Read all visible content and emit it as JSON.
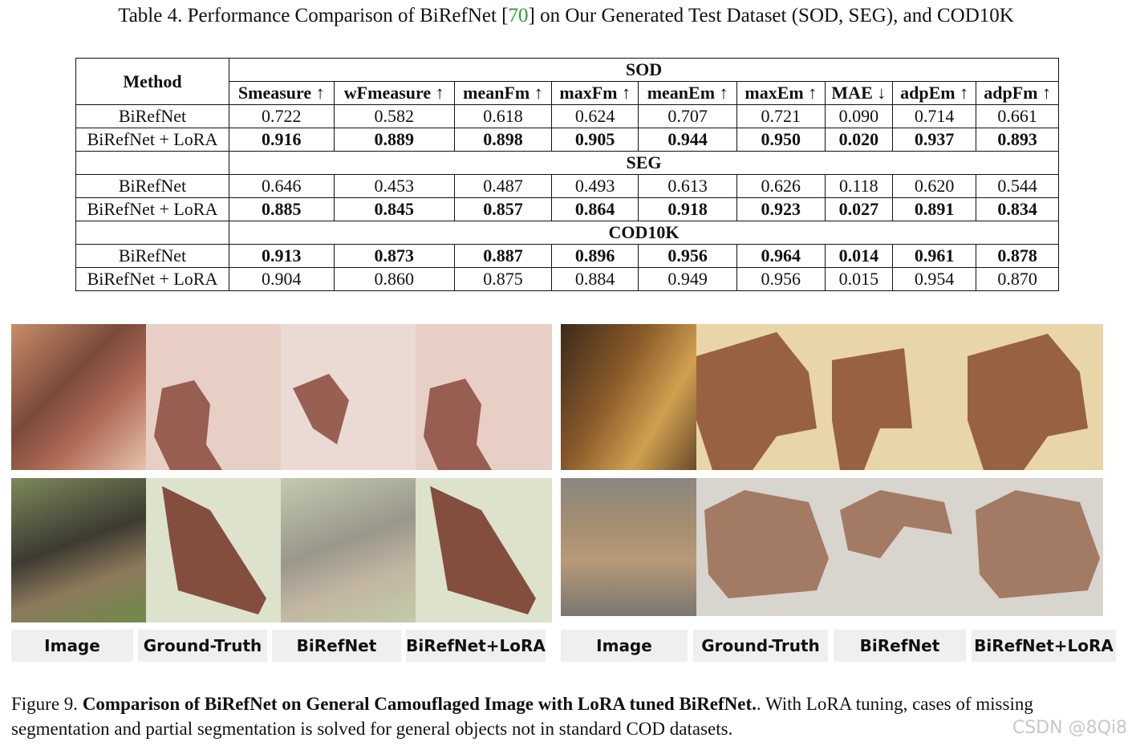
{
  "table_caption": {
    "prefix": "Table 4. Performance Comparison of BiRefNet [",
    "ref": "70",
    "suffix": "] on Our Generated Test Dataset (SOD, SEG), and COD10K"
  },
  "table": {
    "method_header": "Method",
    "columns": [
      "Smeasure ↑",
      "wFmeasure ↑",
      "meanFm ↑",
      "maxFm ↑",
      "meanEm ↑",
      "maxEm ↑",
      "MAE ↓",
      "adpEm ↑",
      "adpFm ↑"
    ],
    "sections": [
      {
        "name": "SOD",
        "rows": [
          {
            "method": "BiRefNet",
            "values": [
              "0.722",
              "0.582",
              "0.618",
              "0.624",
              "0.707",
              "0.721",
              "0.090",
              "0.714",
              "0.661"
            ],
            "bold": false
          },
          {
            "method": "BiRefNet + LoRA",
            "values": [
              "0.916",
              "0.889",
              "0.898",
              "0.905",
              "0.944",
              "0.950",
              "0.020",
              "0.937",
              "0.893"
            ],
            "bold": true
          }
        ]
      },
      {
        "name": "SEG",
        "rows": [
          {
            "method": "BiRefNet",
            "values": [
              "0.646",
              "0.453",
              "0.487",
              "0.493",
              "0.613",
              "0.626",
              "0.118",
              "0.620",
              "0.544"
            ],
            "bold": false
          },
          {
            "method": "BiRefNet + LoRA",
            "values": [
              "0.885",
              "0.845",
              "0.857",
              "0.864",
              "0.918",
              "0.923",
              "0.027",
              "0.891",
              "0.834"
            ],
            "bold": true
          }
        ]
      },
      {
        "name": "COD10K",
        "rows": [
          {
            "method": "BiRefNet",
            "values": [
              "0.913",
              "0.873",
              "0.887",
              "0.896",
              "0.956",
              "0.964",
              "0.014",
              "0.961",
              "0.878"
            ],
            "bold": true
          },
          {
            "method": "BiRefNet + LoRA",
            "values": [
              "0.904",
              "0.860",
              "0.875",
              "0.884",
              "0.949",
              "0.956",
              "0.015",
              "0.954",
              "0.870"
            ],
            "bold": false
          }
        ]
      }
    ]
  },
  "figure": {
    "labels_left": [
      "Image",
      "Ground-Truth",
      "BiRefNet",
      "BiRefNet+LoRA"
    ],
    "labels_right": [
      "Image",
      "Ground-Truth",
      "BiRefNet",
      "BiRefNet+LoRA"
    ]
  },
  "figure_caption": {
    "prefix": "Figure 9. ",
    "bold": "Comparison of BiRefNet on General Camouflaged Image with LoRA tuned BiRefNet.",
    "rest": ". With LoRA tuning, cases of missing segmentation and partial segmentation is solved for general objects not in standard COD datasets."
  },
  "watermark": "CSDN @8Qi8"
}
